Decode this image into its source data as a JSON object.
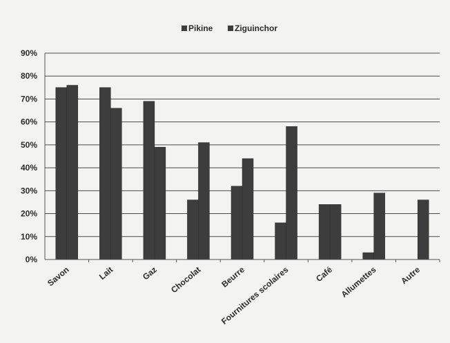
{
  "chart_data": {
    "type": "bar",
    "categories": [
      "Savon",
      "Lait",
      "Gaz",
      "Chocolat",
      "Beurre",
      "Fournitures scolaires",
      "Café",
      "Allumettes",
      "Autre"
    ],
    "series": [
      {
        "name": "Pikine",
        "values": [
          75,
          75,
          69,
          26,
          32,
          16,
          24,
          3,
          0
        ]
      },
      {
        "name": "Ziguinchor",
        "values": [
          76,
          66,
          49,
          51,
          44,
          58,
          24,
          29,
          26
        ]
      }
    ],
    "ylim": [
      0,
      90
    ],
    "yticks": [
      "0%",
      "10%",
      "20%",
      "30%",
      "40%",
      "50%",
      "60%",
      "70%",
      "80%",
      "90%"
    ],
    "grid": true,
    "legend_position": "top",
    "colors": {
      "bar": "#3d3d3d",
      "bar_edge": "#2a2a2a",
      "grid": "#4a4a4a",
      "text": "#2b2b2b",
      "axis": "#555555"
    }
  }
}
